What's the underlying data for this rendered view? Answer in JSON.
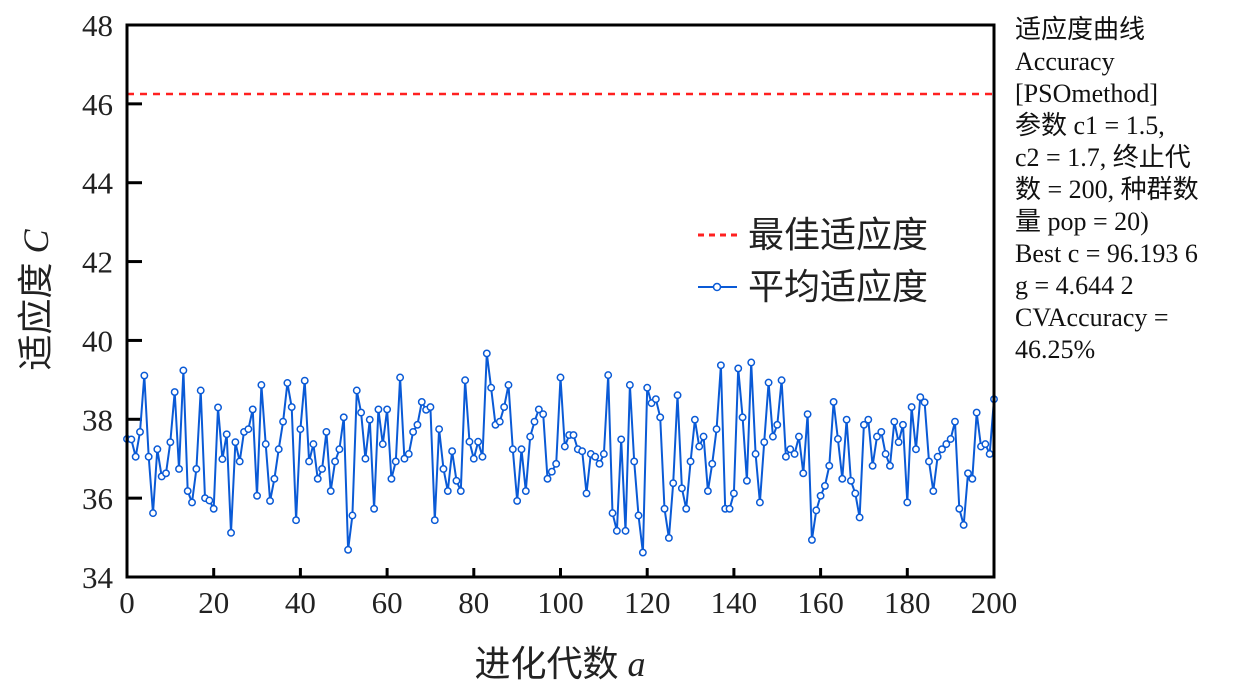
{
  "chart_data": {
    "type": "line",
    "xlabel": "进化代数",
    "xlabel_var": "a",
    "ylabel": "适应度",
    "ylabel_var": "C",
    "xlim": [
      0,
      200
    ],
    "ylim": [
      34,
      48
    ],
    "xticks": [
      0,
      20,
      40,
      60,
      80,
      100,
      120,
      140,
      160,
      180,
      200
    ],
    "yticks": [
      34,
      36,
      38,
      40,
      42,
      44,
      46,
      48
    ],
    "legend_position": "center-right",
    "series": [
      {
        "name": "最佳适应度",
        "style": "dashed",
        "color": "#ff2020",
        "constant": 46.25
      },
      {
        "name": "平均适应度",
        "style": "line-circle",
        "color": "#0a5ad6",
        "values": [
          37.5,
          37.49,
          37.05,
          37.68,
          39.11,
          37.05,
          35.62,
          37.24,
          36.55,
          36.63,
          37.42,
          38.69,
          36.74,
          39.24,
          36.18,
          35.89,
          36.74,
          38.73,
          36.0,
          35.94,
          35.73,
          38.3,
          36.99,
          37.62,
          35.12,
          37.42,
          36.93,
          37.68,
          37.75,
          38.25,
          36.06,
          38.87,
          37.37,
          35.93,
          36.49,
          37.24,
          37.94,
          38.92,
          38.31,
          35.44,
          37.75,
          38.98,
          36.93,
          37.37,
          36.49,
          36.74,
          37.68,
          36.18,
          36.93,
          37.24,
          38.05,
          34.69,
          35.56,
          38.73,
          38.17,
          37.0,
          37.99,
          35.73,
          38.25,
          37.37,
          38.25,
          36.49,
          36.93,
          39.06,
          37.0,
          37.12,
          37.68,
          37.86,
          38.44,
          38.24,
          38.31,
          35.44,
          37.75,
          36.74,
          36.18,
          37.19,
          36.44,
          36.18,
          38.99,
          37.43,
          37.0,
          37.43,
          37.05,
          39.67,
          38.8,
          37.86,
          37.94,
          38.31,
          38.87,
          37.24,
          35.93,
          37.24,
          36.18,
          37.56,
          37.94,
          38.25,
          38.13,
          36.49,
          36.67,
          36.87,
          39.06,
          37.31,
          37.6,
          37.6,
          37.24,
          37.19,
          36.12,
          37.12,
          37.05,
          36.87,
          37.12,
          39.12,
          35.62,
          35.17,
          37.49,
          35.17,
          38.87,
          36.93,
          35.56,
          34.62,
          38.8,
          38.41,
          38.51,
          38.05,
          35.73,
          34.99,
          36.38,
          38.61,
          36.25,
          35.73,
          36.93,
          37.99,
          37.31,
          37.56,
          36.18,
          36.87,
          37.75,
          39.37,
          35.73,
          35.73,
          36.12,
          39.29,
          38.05,
          36.44,
          39.44,
          37.12,
          35.89,
          37.42,
          38.93,
          37.56,
          37.86,
          38.99,
          37.05,
          37.24,
          37.12,
          37.56,
          36.63,
          38.13,
          34.94,
          35.69,
          36.06,
          36.31,
          36.82,
          38.44,
          37.5,
          36.49,
          37.99,
          36.44,
          36.12,
          35.51,
          37.86,
          37.99,
          36.82,
          37.56,
          37.68,
          37.12,
          36.82,
          37.94,
          37.42,
          37.86,
          35.89,
          38.31,
          37.24,
          38.56,
          38.43,
          36.93,
          36.18,
          37.05,
          37.24,
          37.37,
          37.5,
          37.94,
          35.73,
          35.32,
          36.63,
          36.49,
          38.17,
          37.31,
          37.37,
          37.12,
          38.51
        ]
      }
    ],
    "annotation_lines": [
      "适应度曲线",
      "Accuracy",
      "[PSOmethod]",
      "参数 c1 = 1.5,",
      "c2 = 1.7, 终止代",
      "数 = 200, 种群数",
      "量 pop = 20)",
      "Best c = 96.193 6",
      "g = 4.644 2",
      "CVAccuracy =",
      "46.25%"
    ]
  }
}
